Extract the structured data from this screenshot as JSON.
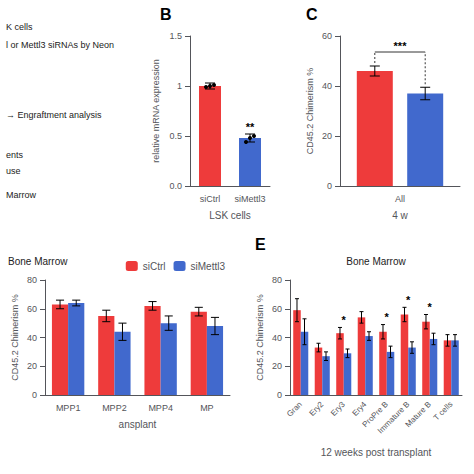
{
  "chart_data": [
    {
      "type": "text",
      "annotations": [
        "K cells",
        "l or Mettl3 siRNAs by Neon",
        "→ Engraftment analysis",
        "ents",
        "use",
        "Marrow"
      ]
    },
    {
      "type": "bar",
      "title": "B",
      "categories": [
        "siCtrl",
        "siMettl3"
      ],
      "values": [
        1.0,
        0.48
      ],
      "errors": [
        0.03,
        0.04
      ],
      "colors": [
        "#EE3B3B",
        "#4169CD"
      ],
      "points": [
        [
          0.99,
          1.0,
          1.01
        ],
        [
          0.44,
          0.48,
          0.5
        ]
      ],
      "ylabel": "relative mRNA expression",
      "xlabel": "LSK cells",
      "ylim": [
        0,
        1.5
      ],
      "yticks": [
        {
          "value": 0,
          "label": "0.0"
        },
        0.5,
        1,
        1.5
      ],
      "grid": false,
      "annotations": [
        {
          "text": "**",
          "x": "siMettl3"
        }
      ]
    },
    {
      "type": "bar",
      "title": "C",
      "categories": [
        "All"
      ],
      "series": [
        {
          "color": "#EE3B3B",
          "values": [
            46.0
          ],
          "errors": [
            2.0
          ]
        },
        {
          "color": "#4169CD",
          "values": [
            37.0
          ],
          "errors": [
            2.5
          ]
        }
      ],
      "ylabel": "CD45.2 Chimerism %",
      "xlabel": "4 w",
      "ylim": [
        0,
        60
      ],
      "yticks": [
        0,
        20,
        40,
        60
      ],
      "grid": false,
      "annotations": [
        {
          "text": "***",
          "x": "All"
        }
      ]
    },
    {
      "type": "bar",
      "subtitle": "Bone Marrow",
      "categories": [
        "MPP1",
        "MPP2",
        "MPP4",
        "MP"
      ],
      "series": [
        {
          "name": "siCtrl",
          "color": "#EE3B3B",
          "values": [
            63,
            55,
            62,
            58
          ],
          "errors": [
            3,
            4,
            3,
            3
          ]
        },
        {
          "name": "siMettl3",
          "color": "#4169CD",
          "values": [
            64,
            44,
            50,
            48
          ],
          "errors": [
            2,
            6,
            5,
            6
          ]
        }
      ],
      "ylabel": "CD45.2 Chimerism %",
      "xlabel": "ansplant",
      "ylim": [
        0,
        80
      ],
      "yticks": [
        0,
        20,
        40,
        60,
        80
      ],
      "grid": false,
      "legend": "upper right"
    },
    {
      "type": "bar",
      "title": "E",
      "subtitle": "Bone Marrow",
      "categories": [
        "Gran",
        "Ery2",
        "Ery3",
        "Ery4",
        "ProPre B",
        "Immature B",
        "Mature B",
        "T cells"
      ],
      "series": [
        {
          "color": "#EE3B3B",
          "values": [
            59,
            33,
            43,
            54,
            44,
            56,
            51,
            38
          ],
          "errors": [
            8,
            3,
            4,
            4,
            5,
            5,
            5,
            4
          ]
        },
        {
          "color": "#4169CD",
          "values": [
            44,
            27,
            29,
            41,
            30,
            33,
            39,
            38
          ],
          "errors": [
            9,
            3,
            3,
            3,
            4,
            4,
            4,
            4
          ]
        }
      ],
      "ylabel": "CD45.2 Chimerism %",
      "xlabel": "12 weeks post transplant",
      "ylim": [
        0,
        80
      ],
      "yticks": [
        0,
        20,
        40,
        60,
        80
      ],
      "grid": false,
      "annotations": [
        {
          "text": "*",
          "x": "Ery3"
        },
        {
          "text": "*",
          "x": "ProPre B"
        },
        {
          "text": "*",
          "x": "Immature B"
        },
        {
          "text": "*",
          "x": "Mature B"
        }
      ]
    }
  ]
}
